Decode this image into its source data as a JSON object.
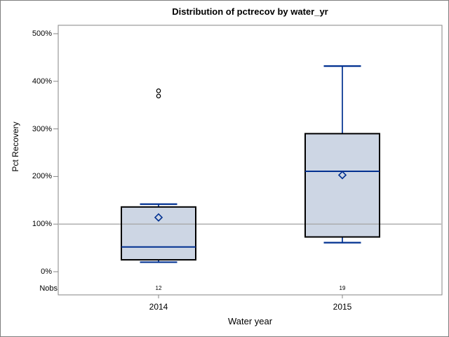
{
  "figure": {
    "background": "#ffffff",
    "border_color": "#7f7f7f"
  },
  "chart_data": {
    "type": "boxplot",
    "title": "Distribution of pctrecov by water_yr",
    "xlabel": "Water year",
    "ylabel": "Pct Recovery",
    "ylim": [
      0,
      500
    ],
    "yticks": [
      {
        "value": 0,
        "label": "0%"
      },
      {
        "value": 100,
        "label": "100%"
      },
      {
        "value": 200,
        "label": "200%"
      },
      {
        "value": 300,
        "label": "300%"
      },
      {
        "value": 400,
        "label": "400%"
      },
      {
        "value": 500,
        "label": "500%"
      }
    ],
    "reference_line": 100,
    "grid": false,
    "legend": "none",
    "nobs_label": "Nobs",
    "categories": [
      "2014",
      "2015"
    ],
    "groups": [
      {
        "label": "2014",
        "nobs": "12",
        "whisker_low": 20,
        "q1": 25,
        "median": 52,
        "q3": 136,
        "whisker_high": 142,
        "mean": 114,
        "outliers": [
          369,
          380
        ]
      },
      {
        "label": "2015",
        "nobs": "19",
        "whisker_low": 61,
        "q1": 73,
        "median": 211,
        "q3": 290,
        "whisker_high": 432,
        "mean": 203,
        "outliers": []
      }
    ],
    "colors": {
      "box_fill": "#cdd6e4",
      "box_border": "#000000",
      "line": "#003090",
      "reference_line": "#a8a8a8",
      "axis": "#868686",
      "outlier_stroke": "#000000",
      "outlier_fill": "#ffffff",
      "text": "#000000"
    }
  }
}
